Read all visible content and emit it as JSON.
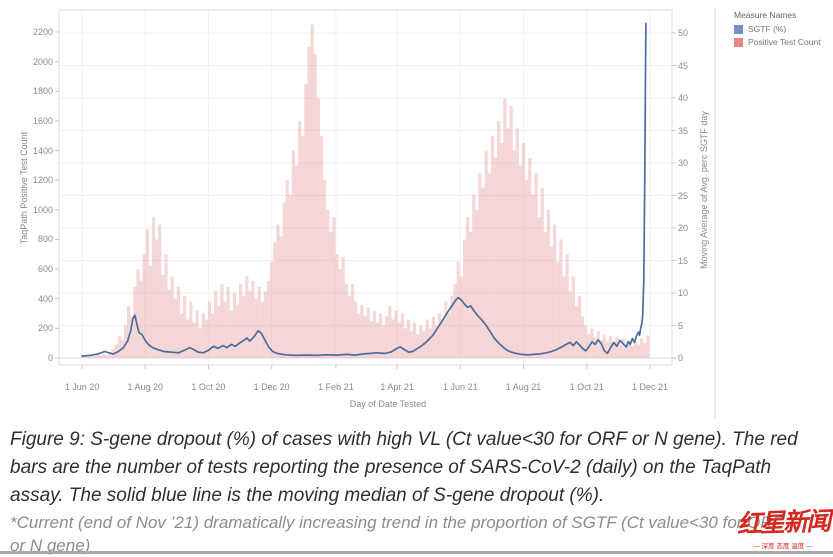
{
  "legend": {
    "title": "Measure Names",
    "items": [
      {
        "label": "SGTF (%)",
        "color": "#7093c3"
      },
      {
        "label": "Positive Test Count",
        "color": "#e98583"
      }
    ]
  },
  "axes": {
    "left": {
      "title": "TaqPath Positive Test Count",
      "ticks": [
        0,
        200,
        400,
        600,
        800,
        1000,
        1200,
        1400,
        1600,
        1800,
        2000,
        2200
      ]
    },
    "right": {
      "title": "Moving Average of Avg. perc SGTF day",
      "ticks": [
        0,
        5,
        10,
        15,
        20,
        25,
        30,
        35,
        40,
        45,
        50
      ]
    },
    "x": {
      "title": "Day of Date Tested",
      "ticks": [
        {
          "label": "1 Jun 20",
          "day": 0
        },
        {
          "label": "1 Aug 20",
          "day": 61
        },
        {
          "label": "1 Oct 20",
          "day": 122
        },
        {
          "label": "1 Dec 20",
          "day": 183
        },
        {
          "label": "1 Feb 21",
          "day": 245
        },
        {
          "label": "1 Apr 21",
          "day": 304
        },
        {
          "label": "1 Jun 21",
          "day": 365
        },
        {
          "label": "1 Aug 21",
          "day": 426
        },
        {
          "label": "1 Oct 21",
          "day": 487
        },
        {
          "label": "1 Dec 21",
          "day": 548
        }
      ]
    }
  },
  "chart_data": [
    {
      "type": "bar",
      "name": "Positive Test Count",
      "axis": "left",
      "ylim": [
        0,
        2200
      ],
      "color": "#e79c9c",
      "start_day": 0,
      "day_step": 3,
      "values": [
        10,
        15,
        8,
        20,
        12,
        25,
        18,
        30,
        22,
        40,
        60,
        90,
        150,
        120,
        220,
        350,
        280,
        480,
        600,
        520,
        700,
        870,
        620,
        950,
        800,
        900,
        560,
        700,
        460,
        550,
        400,
        480,
        300,
        420,
        260,
        380,
        240,
        320,
        200,
        300,
        260,
        380,
        300,
        450,
        350,
        500,
        380,
        480,
        320,
        440,
        360,
        500,
        420,
        550,
        450,
        520,
        400,
        480,
        380,
        450,
        520,
        650,
        780,
        900,
        820,
        1050,
        1200,
        1100,
        1400,
        1300,
        1600,
        1500,
        1850,
        2100,
        2250,
        2050,
        1750,
        1500,
        1200,
        1000,
        850,
        950,
        700,
        600,
        680,
        500,
        420,
        500,
        380,
        300,
        360,
        280,
        340,
        250,
        320,
        240,
        300,
        220,
        280,
        350,
        260,
        320,
        240,
        300,
        200,
        260,
        180,
        240,
        160,
        220,
        180,
        260,
        200,
        280,
        220,
        300,
        260,
        380,
        300,
        420,
        500,
        650,
        550,
        800,
        950,
        850,
        1100,
        1000,
        1250,
        1150,
        1400,
        1250,
        1500,
        1350,
        1600,
        1450,
        1750,
        1550,
        1700,
        1400,
        1550,
        1300,
        1450,
        1200,
        1350,
        1100,
        1250,
        950,
        1150,
        850,
        1000,
        750,
        900,
        650,
        800,
        550,
        700,
        450,
        550,
        350,
        420,
        280,
        220,
        160,
        200,
        140,
        180,
        120,
        160,
        110,
        150,
        100,
        140,
        90,
        130,
        85,
        120,
        80,
        110,
        90,
        130,
        100,
        150
      ]
    },
    {
      "type": "line",
      "name": "SGTF (%)",
      "axis": "right",
      "ylim": [
        0,
        50
      ],
      "color": "#4a6d9e",
      "points": [
        [
          0,
          0.3
        ],
        [
          8,
          0.4
        ],
        [
          15,
          0.6
        ],
        [
          22,
          1.0
        ],
        [
          26,
          0.8
        ],
        [
          30,
          0.6
        ],
        [
          35,
          1.0
        ],
        [
          40,
          1.6
        ],
        [
          44,
          2.6
        ],
        [
          47,
          4.2
        ],
        [
          49,
          6.0
        ],
        [
          51,
          6.6
        ],
        [
          53,
          5.2
        ],
        [
          55,
          3.9
        ],
        [
          58,
          3.6
        ],
        [
          61,
          2.7
        ],
        [
          64,
          2.1
        ],
        [
          68,
          1.6
        ],
        [
          73,
          1.3
        ],
        [
          79,
          1.0
        ],
        [
          86,
          0.9
        ],
        [
          93,
          0.8
        ],
        [
          99,
          1.2
        ],
        [
          104,
          1.6
        ],
        [
          108,
          1.3
        ],
        [
          112,
          0.9
        ],
        [
          117,
          0.8
        ],
        [
          122,
          1.2
        ],
        [
          127,
          1.8
        ],
        [
          131,
          1.5
        ],
        [
          136,
          1.9
        ],
        [
          140,
          1.6
        ],
        [
          144,
          2.1
        ],
        [
          148,
          1.8
        ],
        [
          152,
          2.3
        ],
        [
          156,
          2.7
        ],
        [
          159,
          3.1
        ],
        [
          162,
          2.6
        ],
        [
          166,
          3.3
        ],
        [
          170,
          4.2
        ],
        [
          173,
          3.8
        ],
        [
          176,
          2.9
        ],
        [
          180,
          1.7
        ],
        [
          184,
          1.0
        ],
        [
          188,
          0.7
        ],
        [
          196,
          0.5
        ],
        [
          206,
          0.4
        ],
        [
          216,
          0.45
        ],
        [
          226,
          0.4
        ],
        [
          236,
          0.5
        ],
        [
          246,
          0.45
        ],
        [
          256,
          0.55
        ],
        [
          263,
          0.45
        ],
        [
          270,
          0.6
        ],
        [
          278,
          0.7
        ],
        [
          285,
          0.8
        ],
        [
          292,
          0.7
        ],
        [
          298,
          0.9
        ],
        [
          303,
          1.4
        ],
        [
          307,
          1.7
        ],
        [
          311,
          1.3
        ],
        [
          315,
          0.9
        ],
        [
          319,
          1.0
        ],
        [
          323,
          1.4
        ],
        [
          327,
          1.8
        ],
        [
          331,
          2.3
        ],
        [
          335,
          2.9
        ],
        [
          339,
          3.6
        ],
        [
          343,
          4.6
        ],
        [
          347,
          5.6
        ],
        [
          351,
          6.6
        ],
        [
          355,
          7.6
        ],
        [
          358,
          8.3
        ],
        [
          361,
          9.0
        ],
        [
          363,
          9.3
        ],
        [
          366,
          8.9
        ],
        [
          369,
          8.3
        ],
        [
          372,
          7.8
        ],
        [
          375,
          8.0
        ],
        [
          378,
          7.3
        ],
        [
          382,
          6.5
        ],
        [
          386,
          5.8
        ],
        [
          390,
          5.0
        ],
        [
          394,
          4.0
        ],
        [
          398,
          3.0
        ],
        [
          402,
          2.3
        ],
        [
          406,
          1.7
        ],
        [
          410,
          1.2
        ],
        [
          414,
          0.9
        ],
        [
          419,
          0.7
        ],
        [
          424,
          0.55
        ],
        [
          430,
          0.5
        ],
        [
          436,
          0.55
        ],
        [
          442,
          0.65
        ],
        [
          448,
          0.8
        ],
        [
          453,
          1.0
        ],
        [
          458,
          1.3
        ],
        [
          463,
          1.7
        ],
        [
          467,
          2.1
        ],
        [
          471,
          2.4
        ],
        [
          474,
          1.9
        ],
        [
          477,
          2.5
        ],
        [
          480,
          2.0
        ],
        [
          483,
          1.5
        ],
        [
          486,
          1.1
        ],
        [
          489,
          1.7
        ],
        [
          492,
          2.5
        ],
        [
          495,
          2.1
        ],
        [
          498,
          2.8
        ],
        [
          501,
          2.2
        ],
        [
          504,
          1.1
        ],
        [
          507,
          0.7
        ],
        [
          510,
          1.6
        ],
        [
          513,
          2.4
        ],
        [
          516,
          1.8
        ],
        [
          519,
          2.7
        ],
        [
          522,
          2.2
        ],
        [
          525,
          1.7
        ],
        [
          527,
          2.5
        ],
        [
          529,
          2.1
        ],
        [
          531,
          3.0
        ],
        [
          533,
          2.4
        ],
        [
          535,
          3.4
        ],
        [
          537,
          4.0
        ],
        [
          538,
          3.5
        ],
        [
          539,
          4.6
        ],
        [
          540,
          5.2
        ],
        [
          541,
          6.5
        ],
        [
          542,
          12
        ],
        [
          543,
          28
        ],
        [
          543.6,
          42
        ],
        [
          544,
          51.5
        ]
      ]
    }
  ],
  "caption_lines": [
    "Figure 9: S-gene dropout (%) of cases with high VL (Ct value<30 for ORF or N gene). The red",
    "bars are the number of tests reporting the presence of SARS-CoV-2 (daily) on the TaqPath",
    "assay. The solid blue line is the moving median of S-gene dropout (%)."
  ],
  "footnote_lines": [
    "*Current (end of Nov ’21) dramatically increasing trend in the proportion of SGTF (Ct value<30 for ORF",
    "or N gene)"
  ],
  "watermark": {
    "name": "红星新闻",
    "tagline": "— 深度 态度 温度 —",
    "color": "#d5281e"
  }
}
